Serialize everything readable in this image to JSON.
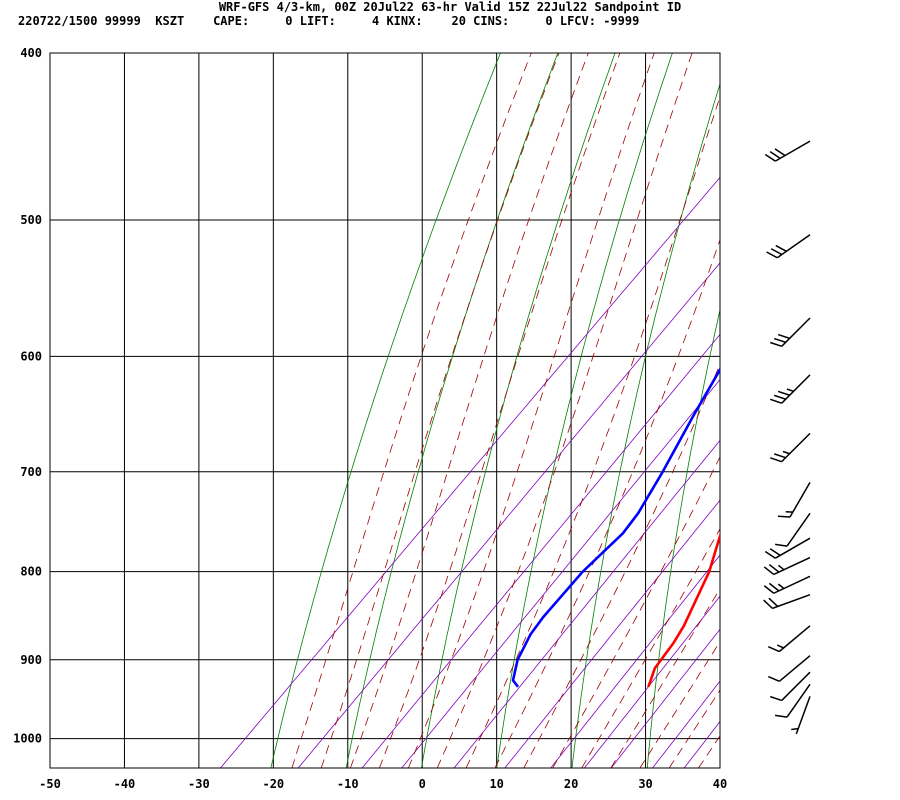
{
  "header": {
    "title": "WRF-GFS 4/3-km, 00Z 20Jul22 63-hr Valid 15Z 22Jul22 Sandpoint ID",
    "info": "220722/1500 99999  KSZT    CAPE:     0 LIFT:     4 KINX:    20 CINS:     0 LFCV: -9999"
  },
  "chart_data": {
    "type": "line",
    "subtype": "skew-T log-P sounding",
    "title": "WRF-GFS 4/3-km, 00Z 20Jul22 63-hr Valid 15Z 22Jul22 Sandpoint ID",
    "xlabel": "",
    "ylabel": "",
    "x_ticks": [
      -50,
      -40,
      -30,
      -20,
      -10,
      0,
      10,
      20,
      30,
      40
    ],
    "pressure_ticks": [
      400,
      500,
      600,
      700,
      800,
      900,
      1000
    ],
    "pressure_range": [
      400,
      1040
    ],
    "grid": true,
    "colors": {
      "temperature": "#ff0000",
      "dewpoint": "#0000ff",
      "isotherm": "#000000",
      "dry_adiabat": "#008000",
      "moist_adiabat": "#a00000",
      "mixing_ratio": "#8000c0",
      "wind_barb": "#000000"
    },
    "series": [
      {
        "key": "temperature",
        "points": [
          {
            "p": 933,
            "t": 20.0
          },
          {
            "p": 925,
            "t": 19.5
          },
          {
            "p": 910,
            "t": 18.5
          },
          {
            "p": 880,
            "t": 17.8
          },
          {
            "p": 860,
            "t": 17.0
          },
          {
            "p": 800,
            "t": 13.5
          },
          {
            "p": 770,
            "t": 11.0
          },
          {
            "p": 700,
            "t": 5.0
          },
          {
            "p": 650,
            "t": 0.0
          },
          {
            "p": 600,
            "t": -5.0
          },
          {
            "p": 550,
            "t": -9.5
          },
          {
            "p": 500,
            "t": -15.0
          },
          {
            "p": 450,
            "t": -22.0
          }
        ]
      },
      {
        "key": "dewpoint",
        "points": [
          {
            "p": 933,
            "t": 2.5
          },
          {
            "p": 925,
            "t": 1.0
          },
          {
            "p": 900,
            "t": -1.0
          },
          {
            "p": 870,
            "t": -2.5
          },
          {
            "p": 850,
            "t": -3.0
          },
          {
            "p": 800,
            "t": -3.5
          },
          {
            "p": 760,
            "t": -3.0
          },
          {
            "p": 740,
            "t": -3.5
          },
          {
            "p": 700,
            "t": -5.5
          },
          {
            "p": 650,
            "t": -8.5
          },
          {
            "p": 600,
            "t": -11.5
          },
          {
            "p": 550,
            "t": -18.0
          },
          {
            "p": 500,
            "t": -26.0
          },
          {
            "p": 450,
            "t": -31.0
          }
        ]
      }
    ],
    "wind_barbs": [
      {
        "p": 450,
        "direction": 240,
        "speed_kt": 30
      },
      {
        "p": 510,
        "direction": 235,
        "speed_kt": 30
      },
      {
        "p": 570,
        "direction": 225,
        "speed_kt": 30
      },
      {
        "p": 615,
        "direction": 225,
        "speed_kt": 35
      },
      {
        "p": 665,
        "direction": 225,
        "speed_kt": 25
      },
      {
        "p": 710,
        "direction": 210,
        "speed_kt": 15
      },
      {
        "p": 740,
        "direction": 215,
        "speed_kt": 10
      },
      {
        "p": 765,
        "direction": 240,
        "speed_kt": 20
      },
      {
        "p": 785,
        "direction": 245,
        "speed_kt": 25
      },
      {
        "p": 805,
        "direction": 245,
        "speed_kt": 25
      },
      {
        "p": 825,
        "direction": 250,
        "speed_kt": 20
      },
      {
        "p": 860,
        "direction": 230,
        "speed_kt": 15
      },
      {
        "p": 895,
        "direction": 230,
        "speed_kt": 10
      },
      {
        "p": 915,
        "direction": 225,
        "speed_kt": 10
      },
      {
        "p": 930,
        "direction": 215,
        "speed_kt": 10
      },
      {
        "p": 945,
        "direction": 200,
        "speed_kt": 5
      }
    ]
  }
}
